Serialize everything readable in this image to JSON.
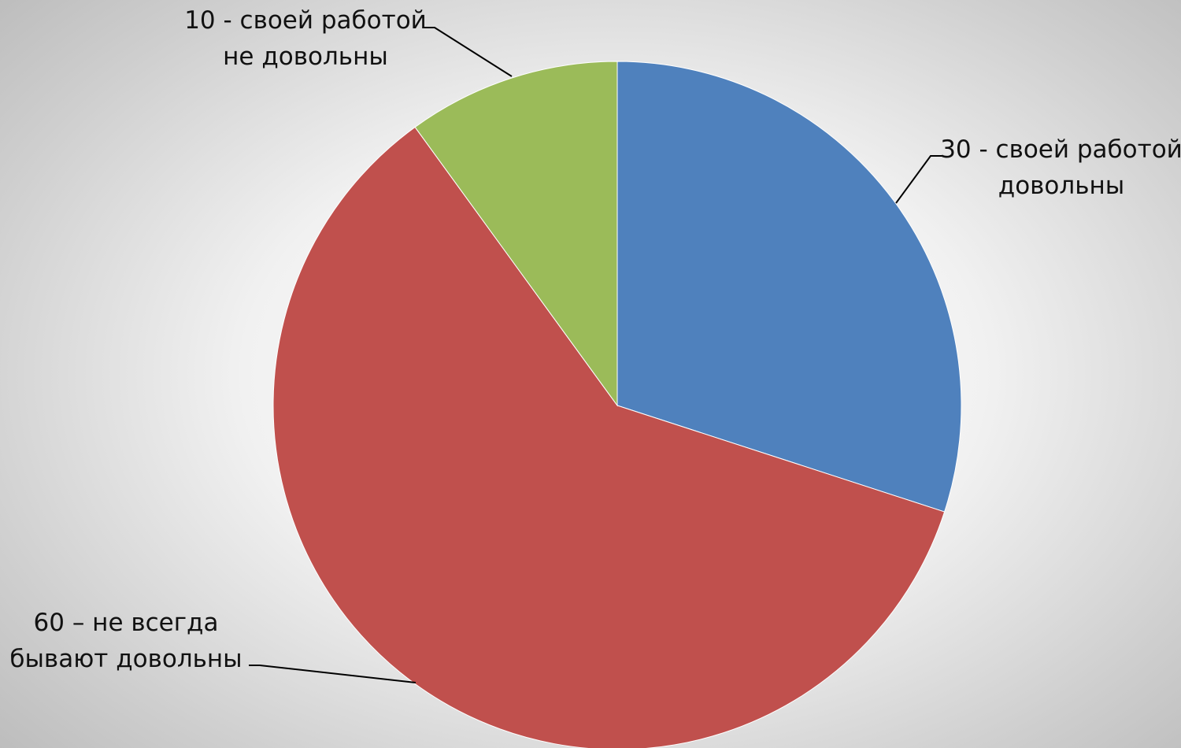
{
  "chart_data": {
    "type": "pie",
    "title": "",
    "series": [
      {
        "values": [
          30,
          60,
          10
        ],
        "labels": [
          [
            "30 - своей работой",
            "довольны"
          ],
          [
            "60 – не всегда",
            "бывают   довольны"
          ],
          [
            "10 - своей работой",
            "не довольны"
          ]
        ],
        "colors": [
          "#4f81bd",
          "#c0504d",
          "#9bbb59"
        ]
      }
    ],
    "start_angle": "12 o'clock",
    "direction": "clockwise",
    "legend": "none",
    "data_labels": "outside with leader lines"
  }
}
